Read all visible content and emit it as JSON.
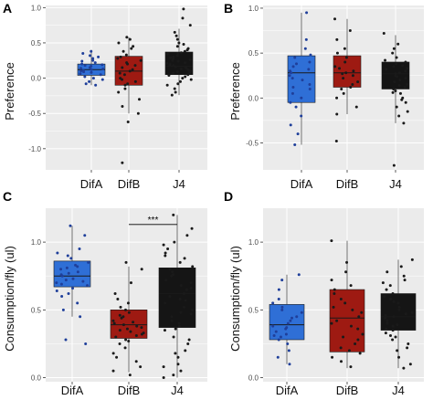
{
  "colors": {
    "DifA": "#2f6fd6",
    "DifB": "#9e1a12",
    "J4": "#151515",
    "point_DifA": "#1f3f9a",
    "point_other": "#1a1a1a"
  },
  "chart_data": [
    {
      "type": "box",
      "panel": "A",
      "ylabel": "Preference",
      "categories": [
        "DifA",
        "DifB",
        "J4"
      ],
      "ylim": [
        -1.3,
        1.03
      ],
      "yticks": [
        -1.0,
        -0.5,
        0.0,
        0.5,
        1.0
      ],
      "ytick_labels": [
        "-1.0",
        "-0.5",
        "0.0",
        "0.5",
        "1.0"
      ],
      "boxes": [
        {
          "name": "DifA",
          "whisker_low": -0.1,
          "q1": 0.04,
          "median": 0.12,
          "q3": 0.2,
          "whisker_high": 0.4
        },
        {
          "name": "DifB",
          "whisker_low": -0.5,
          "q1": -0.1,
          "median": 0.1,
          "q3": 0.31,
          "whisker_high": 0.58
        },
        {
          "name": "J4",
          "whisker_low": -0.24,
          "q1": 0.05,
          "median": 0.17,
          "q3": 0.37,
          "whisker_high": 0.7
        }
      ],
      "points": [
        [
          0.38,
          0.25,
          0.2,
          0.18,
          0.15,
          0.12,
          0.1,
          0.05,
          0.0,
          -0.05,
          -0.08,
          0.3,
          0.22,
          0.14,
          0.08,
          0.02,
          -0.1,
          0.35,
          0.28,
          0.17,
          0.11,
          0.06,
          0.19,
          0.13,
          0.24,
          0.32,
          -0.02,
          0.09
        ],
        [
          0.58,
          0.55,
          0.45,
          0.38,
          0.3,
          0.25,
          0.2,
          0.15,
          0.1,
          0.05,
          0.0,
          -0.05,
          -0.1,
          -0.15,
          -0.2,
          -0.3,
          -0.4,
          -0.5,
          -0.62,
          -1.2,
          0.42,
          0.33,
          0.18,
          0.12,
          0.07,
          -0.02,
          -0.08,
          0.5,
          0.28,
          0.22
        ],
        [
          0.98,
          0.85,
          0.75,
          0.65,
          0.55,
          0.5,
          0.45,
          0.4,
          0.35,
          0.32,
          0.28,
          0.25,
          0.22,
          0.2,
          0.18,
          0.15,
          0.12,
          0.1,
          0.08,
          0.05,
          0.02,
          0.0,
          -0.05,
          -0.1,
          -0.15,
          -0.2,
          -0.24,
          0.6,
          0.48,
          0.38,
          0.3,
          0.26,
          0.21,
          0.16,
          0.13,
          0.09,
          0.04,
          -0.02,
          -0.08,
          0.42,
          0.36,
          0.24,
          0.19,
          0.14,
          0.11,
          0.07,
          0.34,
          0.29
        ]
      ]
    },
    {
      "type": "box",
      "panel": "B",
      "ylabel": "Preference",
      "categories": [
        "DifA",
        "DifB",
        "J4"
      ],
      "ylim": [
        -0.8,
        1.03
      ],
      "yticks": [
        -0.5,
        0.0,
        0.5,
        1.0
      ],
      "ytick_labels": [
        "-0.5",
        "0.0",
        "0.5",
        "1.0"
      ],
      "boxes": [
        {
          "name": "DifA",
          "whisker_low": -0.52,
          "q1": -0.05,
          "median": 0.28,
          "q3": 0.47,
          "whisker_high": 0.95
        },
        {
          "name": "DifB",
          "whisker_low": -0.18,
          "q1": 0.12,
          "median": 0.28,
          "q3": 0.47,
          "whisker_high": 0.88
        },
        {
          "name": "J4",
          "whisker_low": -0.28,
          "q1": 0.1,
          "median": 0.27,
          "q3": 0.4,
          "whisker_high": 0.7
        }
      ],
      "points": [
        [
          0.95,
          0.65,
          0.55,
          0.48,
          0.45,
          0.4,
          0.35,
          0.3,
          0.28,
          0.25,
          0.2,
          0.15,
          0.1,
          0.05,
          0.0,
          -0.05,
          -0.1,
          -0.2,
          -0.3,
          -0.4,
          -0.52,
          0.38,
          0.32,
          0.22,
          0.12
        ],
        [
          0.88,
          0.75,
          0.65,
          0.55,
          0.5,
          0.45,
          0.4,
          0.35,
          0.3,
          0.28,
          0.25,
          0.22,
          0.18,
          0.15,
          0.12,
          0.1,
          0.05,
          0.0,
          -0.1,
          -0.18,
          -0.48,
          0.33,
          0.27
        ],
        [
          0.72,
          0.6,
          0.55,
          0.5,
          0.45,
          0.4,
          0.38,
          0.35,
          0.32,
          0.3,
          0.28,
          0.25,
          0.22,
          0.2,
          0.18,
          0.15,
          0.12,
          0.1,
          0.08,
          0.05,
          0.0,
          -0.05,
          -0.1,
          -0.15,
          -0.2,
          -0.28,
          -0.75,
          0.42,
          0.33,
          0.24,
          0.14,
          0.06,
          -0.02,
          0.36,
          0.27
        ]
      ]
    },
    {
      "type": "box",
      "panel": "C",
      "ylabel": "Consumption/fly (ul)",
      "categories": [
        "DifA",
        "DifB",
        "J4"
      ],
      "ylim": [
        -0.03,
        1.25
      ],
      "yticks": [
        0.0,
        0.5,
        1.0
      ],
      "ytick_labels": [
        "0.0",
        "0.5",
        "1.0"
      ],
      "boxes": [
        {
          "name": "DifA",
          "whisker_low": 0.45,
          "q1": 0.67,
          "median": 0.75,
          "q3": 0.86,
          "whisker_high": 1.12
        },
        {
          "name": "DifB",
          "whisker_low": 0.04,
          "q1": 0.29,
          "median": 0.39,
          "q3": 0.5,
          "whisker_high": 0.82
        },
        {
          "name": "J4",
          "whisker_low": 0.0,
          "q1": 0.37,
          "median": 0.62,
          "q3": 0.81,
          "whisker_high": 1.2
        }
      ],
      "significance": {
        "from": "DifB",
        "to": "J4",
        "y": 1.13,
        "label": "***"
      },
      "points": [
        [
          1.12,
          1.05,
          0.95,
          0.92,
          0.9,
          0.88,
          0.85,
          0.82,
          0.8,
          0.78,
          0.76,
          0.75,
          0.73,
          0.72,
          0.7,
          0.68,
          0.66,
          0.64,
          0.62,
          0.6,
          0.55,
          0.5,
          0.45,
          0.28,
          0.25,
          0.83,
          0.77,
          0.71,
          0.69,
          0.81
        ],
        [
          0.85,
          0.8,
          0.7,
          0.62,
          0.58,
          0.55,
          0.52,
          0.5,
          0.48,
          0.45,
          0.42,
          0.4,
          0.38,
          0.36,
          0.34,
          0.32,
          0.3,
          0.28,
          0.25,
          0.22,
          0.18,
          0.15,
          0.12,
          0.08,
          0.05,
          0.02,
          0.44,
          0.39,
          0.35,
          0.31,
          0.27,
          0.46,
          0.41,
          0.37,
          0.33
        ],
        [
          1.2,
          1.1,
          1.05,
          1.0,
          0.98,
          0.95,
          0.9,
          0.88,
          0.85,
          0.82,
          0.8,
          0.78,
          0.75,
          0.72,
          0.7,
          0.68,
          0.65,
          0.62,
          0.6,
          0.58,
          0.55,
          0.52,
          0.5,
          0.48,
          0.45,
          0.42,
          0.4,
          0.38,
          0.35,
          0.3,
          0.25,
          0.2,
          0.15,
          0.1,
          0.05,
          0.02,
          0.0,
          0.92,
          0.76,
          0.66,
          0.57,
          0.47,
          0.36,
          0.28,
          0.18,
          0.08
        ]
      ]
    },
    {
      "type": "box",
      "panel": "D",
      "ylabel": "Consumption/fly (ul)",
      "categories": [
        "DifA",
        "DifB",
        "J4"
      ],
      "ylim": [
        -0.03,
        1.25
      ],
      "yticks": [
        0.0,
        0.5,
        1.0
      ],
      "ytick_labels": [
        "0.0",
        "0.5",
        "1.0"
      ],
      "boxes": [
        {
          "name": "DifA",
          "whisker_low": 0.1,
          "q1": 0.28,
          "median": 0.39,
          "q3": 0.54,
          "whisker_high": 0.76
        },
        {
          "name": "DifB",
          "whisker_low": 0.07,
          "q1": 0.19,
          "median": 0.44,
          "q3": 0.65,
          "whisker_high": 1.01
        },
        {
          "name": "J4",
          "whisker_low": 0.07,
          "q1": 0.35,
          "median": 0.45,
          "q3": 0.62,
          "whisker_high": 0.87
        }
      ],
      "points": [
        [
          0.76,
          0.72,
          0.65,
          0.58,
          0.55,
          0.52,
          0.5,
          0.48,
          0.45,
          0.42,
          0.4,
          0.38,
          0.36,
          0.34,
          0.32,
          0.3,
          0.28,
          0.25,
          0.2,
          0.15,
          0.1,
          0.44,
          0.37,
          0.31
        ],
        [
          1.01,
          0.85,
          0.78,
          0.72,
          0.68,
          0.65,
          0.62,
          0.58,
          0.55,
          0.5,
          0.48,
          0.45,
          0.42,
          0.4,
          0.36,
          0.32,
          0.28,
          0.25,
          0.2,
          0.18,
          0.15,
          0.12,
          0.08,
          0.52,
          0.38,
          0.3,
          0.22
        ],
        [
          0.87,
          0.82,
          0.78,
          0.75,
          0.72,
          0.7,
          0.68,
          0.65,
          0.62,
          0.6,
          0.58,
          0.55,
          0.52,
          0.5,
          0.48,
          0.46,
          0.45,
          0.44,
          0.42,
          0.4,
          0.38,
          0.36,
          0.35,
          0.33,
          0.3,
          0.28,
          0.25,
          0.2,
          0.15,
          0.1,
          0.07,
          0.56,
          0.47,
          0.39,
          0.31,
          0.22
        ]
      ]
    }
  ]
}
